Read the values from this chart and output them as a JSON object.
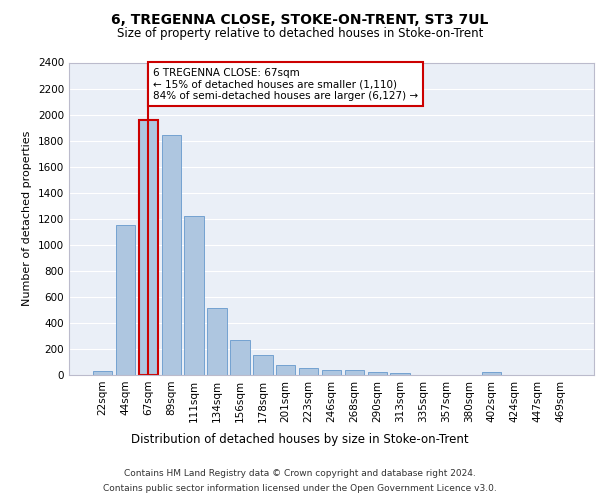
{
  "title": "6, TREGENNA CLOSE, STOKE-ON-TRENT, ST3 7UL",
  "subtitle": "Size of property relative to detached houses in Stoke-on-Trent",
  "xlabel": "Distribution of detached houses by size in Stoke-on-Trent",
  "ylabel": "Number of detached properties",
  "categories": [
    "22sqm",
    "44sqm",
    "67sqm",
    "89sqm",
    "111sqm",
    "134sqm",
    "156sqm",
    "178sqm",
    "201sqm",
    "223sqm",
    "246sqm",
    "268sqm",
    "290sqm",
    "313sqm",
    "335sqm",
    "357sqm",
    "380sqm",
    "402sqm",
    "424sqm",
    "447sqm",
    "469sqm"
  ],
  "values": [
    30,
    1150,
    1960,
    1840,
    1220,
    515,
    265,
    155,
    80,
    50,
    42,
    42,
    22,
    18,
    0,
    0,
    0,
    20,
    0,
    0,
    0
  ],
  "bar_color": "#aec6e0",
  "bar_edge_color": "#6699cc",
  "highlight_bar_index": 2,
  "vline_color": "#cc0000",
  "annotation_text": "6 TREGENNA CLOSE: 67sqm\n← 15% of detached houses are smaller (1,110)\n84% of semi-detached houses are larger (6,127) →",
  "annotation_box_color": "#ffffff",
  "annotation_box_edge": "#cc0000",
  "ylim": [
    0,
    2400
  ],
  "yticks": [
    0,
    200,
    400,
    600,
    800,
    1000,
    1200,
    1400,
    1600,
    1800,
    2000,
    2200,
    2400
  ],
  "footer1": "Contains HM Land Registry data © Crown copyright and database right 2024.",
  "footer2": "Contains public sector information licensed under the Open Government Licence v3.0.",
  "plot_bg_color": "#eaeff7",
  "title_fontsize": 10,
  "subtitle_fontsize": 8.5,
  "xlabel_fontsize": 8.5,
  "ylabel_fontsize": 8,
  "tick_fontsize": 7.5,
  "footer_fontsize": 6.5,
  "annot_fontsize": 7.5
}
